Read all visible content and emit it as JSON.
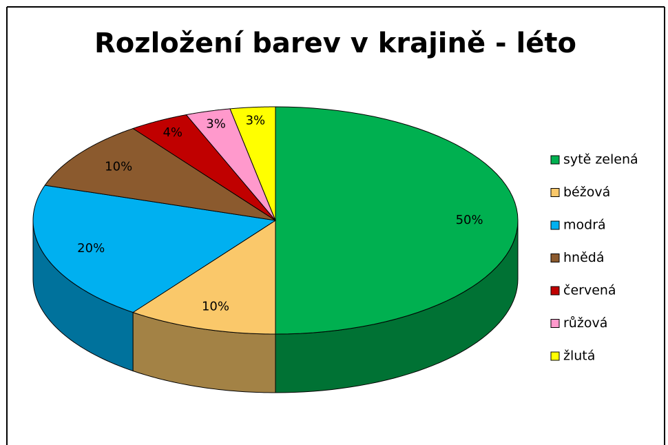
{
  "chart_data": {
    "type": "pie",
    "title": "Rozložení barev v krajině - léto",
    "categories": [
      "sytě zelená",
      "béžová",
      "modrá",
      "hnědá",
      "červená",
      "růžová",
      "žlutá"
    ],
    "values": [
      50,
      10,
      20,
      10,
      4,
      3,
      3
    ],
    "value_labels": [
      "50%",
      "10%",
      "20%",
      "10%",
      "4%",
      "3%",
      "3%"
    ],
    "colors": [
      "#00b050",
      "#fac86a",
      "#00b0f0",
      "#8b5a2e",
      "#c00000",
      "#ff99cc",
      "#ffff00"
    ],
    "legend": "right"
  }
}
